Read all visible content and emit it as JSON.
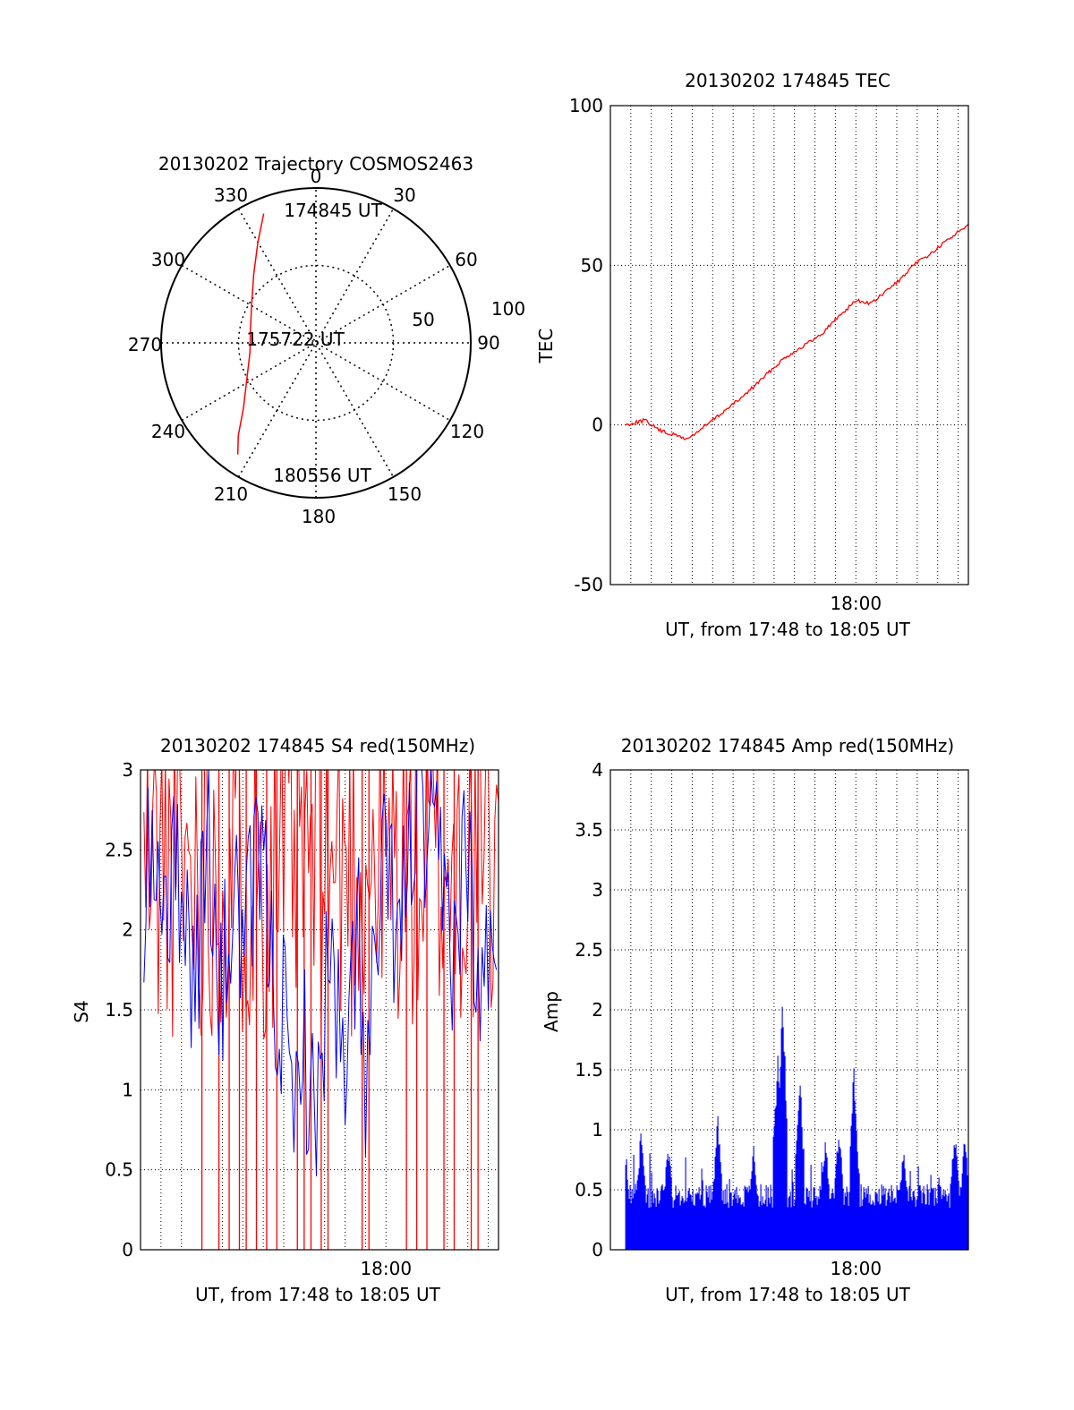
{
  "colors": {
    "red": "#ff0000",
    "blue": "#0000ff",
    "axis": "#000000"
  },
  "chart_data": [
    {
      "type": "polar",
      "title": "20130202 Trajectory COSMOS2463",
      "angle_labels": [
        "0",
        "30",
        "60",
        "90",
        "120",
        "150",
        "180",
        "210",
        "240",
        "270",
        "300",
        "330"
      ],
      "radial_labels": [
        "50",
        "100"
      ],
      "rlim": [
        0,
        100
      ],
      "track": {
        "name": "",
        "points": [
          {
            "az": 338,
            "r": 90
          },
          {
            "az": 330,
            "r": 75
          },
          {
            "az": 318,
            "r": 60
          },
          {
            "az": 300,
            "r": 48
          },
          {
            "az": 280,
            "r": 43
          },
          {
            "az": 262,
            "r": 43
          },
          {
            "az": 243,
            "r": 50
          },
          {
            "az": 228,
            "r": 63
          },
          {
            "az": 220,
            "r": 78
          },
          {
            "az": 215,
            "r": 88
          }
        ]
      },
      "annotations": [
        {
          "label": "174845 UT",
          "az": 338,
          "r": 90
        },
        {
          "label": "175722 UT",
          "az": 272,
          "r": 43
        },
        {
          "label": "180556 UT",
          "az": 215,
          "r": 88
        }
      ]
    },
    {
      "type": "line",
      "title": "20130202 174845 TEC",
      "xlabel": "UT, from 17:48 to 18:05 UT",
      "ylabel": "TEC",
      "xlim": [
        "17:48:00",
        "18:05:30"
      ],
      "ylim": [
        -50,
        100
      ],
      "yticks": [
        "-50",
        "0",
        "50",
        "100"
      ],
      "xticks": [
        "18:00"
      ],
      "grid": true,
      "series": [
        {
          "color": "red",
          "x": [
            "17:48:45",
            "17:49:40",
            "17:50:30",
            "17:51:20",
            "17:51:45",
            "17:52:30",
            "17:53:30",
            "17:54:30",
            "17:55:30",
            "17:56:30",
            "17:57:30",
            "17:58:15",
            "17:59:00",
            "18:00:00",
            "18:00:45",
            "18:01:30",
            "18:02:15",
            "18:03:00",
            "18:03:45",
            "18:04:30",
            "18:05:30"
          ],
          "y": [
            0,
            1.5,
            -2,
            -3.5,
            -4.5,
            -1,
            4,
            9,
            15,
            21,
            25,
            28,
            33,
            39,
            38,
            42,
            46,
            51,
            54,
            58,
            63
          ]
        }
      ]
    },
    {
      "type": "line",
      "title": "20130202 174845 S4 red(150MHz)",
      "xlabel": "UT, from 17:48 to 18:05 UT",
      "ylabel": "S4",
      "xlim": [
        "17:48:00",
        "18:05:30"
      ],
      "ylim": [
        0,
        3
      ],
      "yticks": [
        "0",
        "0.5",
        "1",
        "1.5",
        "2",
        "2.5",
        "3"
      ],
      "xticks": [
        "18:00"
      ],
      "grid": true,
      "series": [
        {
          "color": "blue",
          "x": [
            "17:48:10",
            "17:48:40",
            "17:49:20",
            "17:50:00",
            "17:50:40",
            "17:51:20",
            "17:51:50",
            "17:52:30",
            "17:53:10",
            "17:53:50",
            "17:54:30",
            "17:55:10",
            "17:55:30",
            "17:55:50",
            "17:56:30",
            "17:57:10",
            "17:57:40",
            "17:58:00",
            "17:58:40",
            "17:59:00",
            "17:59:20",
            "18:00:00",
            "18:00:40",
            "18:01:20",
            "18:02:00",
            "18:02:40",
            "18:03:20",
            "18:04:00",
            "18:04:30",
            "18:05:00",
            "18:05:30"
          ],
          "y": [
            2.1,
            2.6,
            2.2,
            2.4,
            1.6,
            2.7,
            1.4,
            2.2,
            1.9,
            2.5,
            1.7,
            1.3,
            0.55,
            1.5,
            0.7,
            1.8,
            1.4,
            0.8,
            2.3,
            0.65,
            1.6,
            2.4,
            1.9,
            2.7,
            2.5,
            2.3,
            1.9,
            2.6,
            1.4,
            2.0,
            1.3
          ]
        },
        {
          "color": "red",
          "drops_to_zero_at": [
            "17:51:00",
            "17:51:50",
            "17:52:20",
            "17:52:50",
            "17:53:10",
            "17:53:40",
            "17:54:10",
            "17:54:40",
            "17:55:40",
            "17:56:00",
            "17:56:20",
            "17:56:50",
            "17:57:10",
            "17:58:50",
            "17:59:10",
            "18:01:00",
            "18:01:30",
            "18:02:00",
            "18:02:50",
            "18:03:20",
            "18:04:10",
            "18:04:30"
          ]
        }
      ]
    },
    {
      "type": "bar",
      "title": "20130202 174845 Amp red(150MHz)",
      "xlabel": "UT, from 17:48 to 18:05 UT",
      "ylabel": "Amp",
      "xlim": [
        "17:48:00",
        "18:05:30"
      ],
      "ylim": [
        0,
        4
      ],
      "yticks": [
        "0",
        "0.5",
        "1",
        "1.5",
        "2",
        "2.5",
        "3",
        "3.5",
        "4"
      ],
      "xticks": [
        "18:00"
      ],
      "grid": true,
      "series": [
        {
          "color": "blue",
          "baseline_range": [
            0.35,
            0.55
          ],
          "peaks": [
            {
              "x": "17:48:45",
              "y": 0.85
            },
            {
              "x": "17:49:30",
              "y": 1.05
            },
            {
              "x": "17:50:50",
              "y": 0.95
            },
            {
              "x": "17:53:15",
              "y": 1.15
            },
            {
              "x": "17:55:00",
              "y": 0.95
            },
            {
              "x": "17:56:10",
              "y": 1.75
            },
            {
              "x": "17:56:25",
              "y": 2.35
            },
            {
              "x": "17:57:15",
              "y": 1.65
            },
            {
              "x": "17:58:30",
              "y": 1.0
            },
            {
              "x": "17:59:10",
              "y": 1.1
            },
            {
              "x": "17:59:55",
              "y": 1.6
            },
            {
              "x": "18:02:20",
              "y": 0.9
            },
            {
              "x": "18:04:50",
              "y": 1.1
            },
            {
              "x": "18:05:20",
              "y": 1.05
            }
          ]
        }
      ]
    }
  ]
}
